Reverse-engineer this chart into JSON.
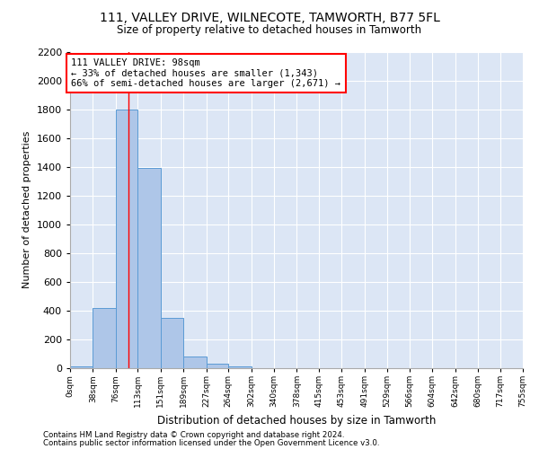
{
  "title1": "111, VALLEY DRIVE, WILNECOTE, TAMWORTH, B77 5FL",
  "title2": "Size of property relative to detached houses in Tamworth",
  "xlabel": "Distribution of detached houses by size in Tamworth",
  "ylabel": "Number of detached properties",
  "footnote1": "Contains HM Land Registry data © Crown copyright and database right 2024.",
  "footnote2": "Contains public sector information licensed under the Open Government Licence v3.0.",
  "annotation_line1": "111 VALLEY DRIVE: 98sqm",
  "annotation_line2": "← 33% of detached houses are smaller (1,343)",
  "annotation_line3": "66% of semi-detached houses are larger (2,671) →",
  "bar_color": "#aec6e8",
  "bar_edge_color": "#5b9bd5",
  "background_color": "#dce6f5",
  "grid_color": "#ffffff",
  "red_line_x": 98,
  "bin_edges": [
    0,
    38,
    76,
    113,
    151,
    189,
    227,
    264,
    302,
    340,
    378,
    415,
    453,
    491,
    529,
    566,
    604,
    642,
    680,
    717,
    755
  ],
  "bar_heights": [
    15,
    420,
    1800,
    1390,
    350,
    80,
    30,
    15,
    0,
    0,
    0,
    0,
    0,
    0,
    0,
    0,
    0,
    0,
    0,
    0
  ],
  "ylim": [
    0,
    2200
  ],
  "yticks": [
    0,
    200,
    400,
    600,
    800,
    1000,
    1200,
    1400,
    1600,
    1800,
    2000,
    2200
  ],
  "tick_labels": [
    "0sqm",
    "38sqm",
    "76sqm",
    "113sqm",
    "151sqm",
    "189sqm",
    "227sqm",
    "264sqm",
    "302sqm",
    "340sqm",
    "378sqm",
    "415sqm",
    "453sqm",
    "491sqm",
    "529sqm",
    "566sqm",
    "604sqm",
    "642sqm",
    "680sqm",
    "717sqm",
    "755sqm"
  ]
}
